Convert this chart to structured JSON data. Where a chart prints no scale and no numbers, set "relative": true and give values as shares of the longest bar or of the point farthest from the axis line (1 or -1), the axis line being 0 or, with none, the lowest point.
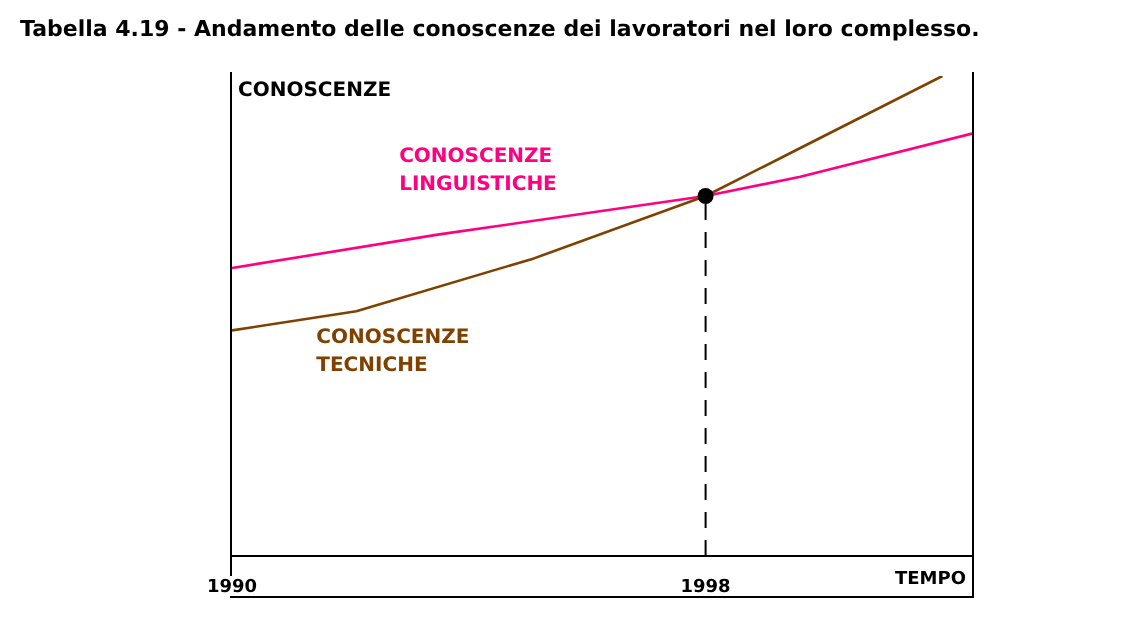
{
  "chart_data": {
    "type": "line",
    "title": "Tabella 4.19 - Andamento delle conoscenze dei lavoratori nel loro complesso.",
    "xlabel": "TEMPO",
    "ylabel": "CONOSCENZE",
    "relative": true,
    "tick_labels": "x",
    "xlim": [
      1990,
      2002.5
    ],
    "xticks": [
      1990,
      1998
    ],
    "series": [
      {
        "name": "CONOSCENZE LINGUISTICHE",
        "color": "#ff0080",
        "x": [
          1990,
          1993.5,
          1998,
          1999.6,
          2002.5
        ],
        "values": [
          0.6,
          0.67,
          0.75,
          0.79,
          0.88
        ]
      },
      {
        "name": "CONOSCENZE TECNICHE",
        "color": "#804000",
        "x": [
          1990,
          1992.1,
          1995.1,
          1998,
          1999.6,
          2002
        ],
        "values": [
          0.47,
          0.51,
          0.62,
          0.75,
          0.85,
          1
        ]
      },
      {
        "type": "scatter",
        "color": "#000000",
        "x": [
          1998
        ],
        "values": [
          0.75
        ]
      }
    ],
    "ref_lines": [
      {
        "axis": "x",
        "value": 1998,
        "color": "#000000",
        "line_style": "dashed"
      }
    ]
  }
}
